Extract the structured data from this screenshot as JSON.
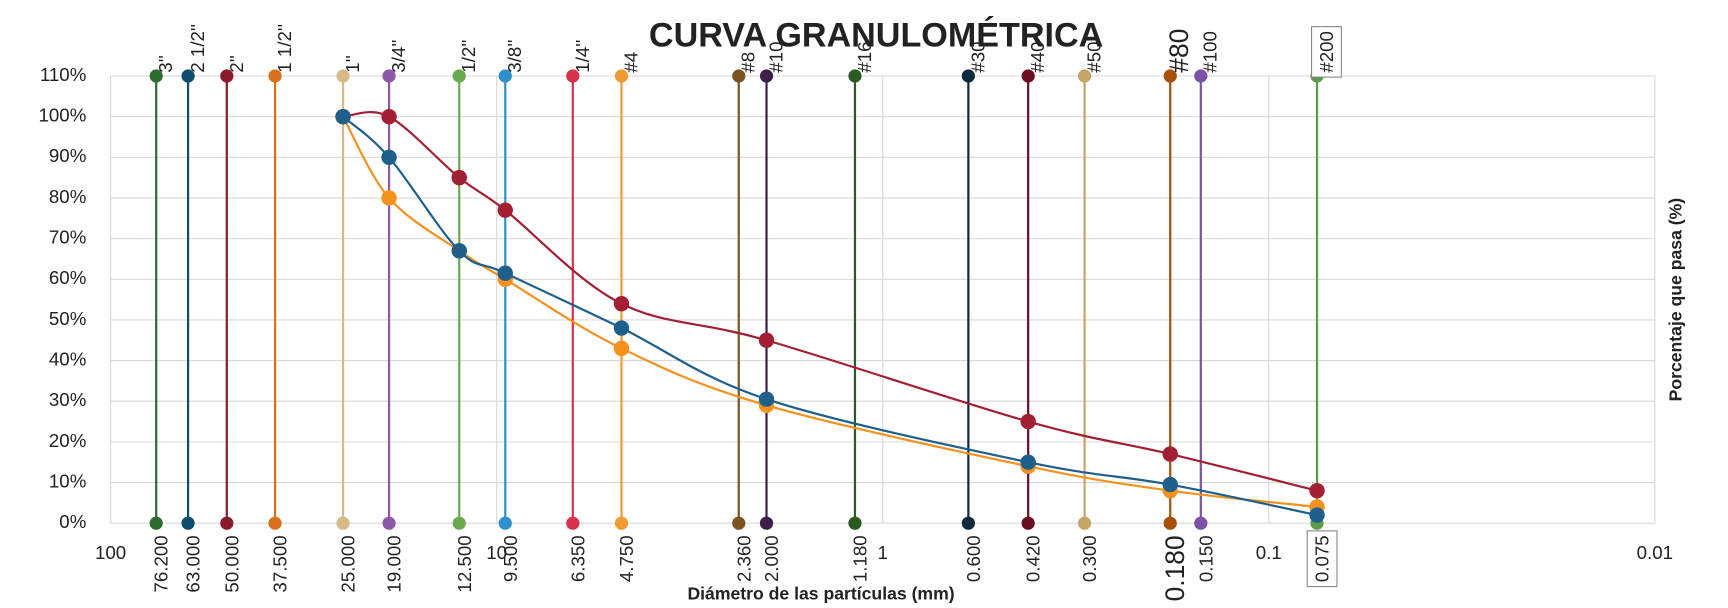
{
  "chart_data": {
    "type": "line",
    "title": "CURVA GRANULOMÉTRICA",
    "x_label": "Diámetro de las partículas (mm)",
    "y_label": "Porcentaje que pasa (%)",
    "xscale": "log",
    "xlim": [
      100,
      0.01
    ],
    "xticks": [
      100,
      10,
      1,
      0.1,
      0.01
    ],
    "ylim": [
      0,
      110
    ],
    "yticks": [
      {
        "value": 0,
        "label": "0%"
      },
      {
        "value": 10,
        "label": "10%"
      },
      {
        "value": 20,
        "label": "20%"
      },
      {
        "value": 30,
        "label": "30%"
      },
      {
        "value": 40,
        "label": "40%"
      },
      {
        "value": 50,
        "label": "50%"
      },
      {
        "value": 60,
        "label": "60%"
      },
      {
        "value": 70,
        "label": "70%"
      },
      {
        "value": 80,
        "label": "80%"
      },
      {
        "value": 90,
        "label": "90%"
      },
      {
        "value": 100,
        "label": "100%"
      },
      {
        "value": 110,
        "label": "110%"
      }
    ],
    "grid": true,
    "sieves": [
      {
        "name": "3''",
        "color": "#2e6b2e",
        "diameter": 76.2,
        "diameter_label": "76.200",
        "values": [
          0,
          110
        ]
      },
      {
        "name": "2 1/2''",
        "color": "#0e4d6e",
        "diameter": 63,
        "diameter_label": "63.000",
        "values": [
          0,
          110
        ]
      },
      {
        "name": "2''",
        "color": "#8b1a2b",
        "diameter": 50,
        "diameter_label": "50.000",
        "values": [
          0,
          110
        ]
      },
      {
        "name": "1 1/2''",
        "color": "#d9711c",
        "diameter": 37.5,
        "diameter_label": "37.500",
        "values": [
          0,
          110
        ]
      },
      {
        "name": "1''",
        "color": "#d8b98a",
        "diameter": 25,
        "diameter_label": "25.000",
        "values": [
          0,
          110
        ]
      },
      {
        "name": "3/4''",
        "color": "#8a5aa8",
        "diameter": 19,
        "diameter_label": "19.000",
        "values": [
          0,
          110
        ]
      },
      {
        "name": "1/2''",
        "color": "#6aaa4f",
        "diameter": 12.5,
        "diameter_label": "12.500",
        "values": [
          0,
          110
        ]
      },
      {
        "name": "3/8''",
        "color": "#2f8fcf",
        "diameter": 9.5,
        "diameter_label": "9.500",
        "values": [
          0,
          110
        ]
      },
      {
        "name": "1/4''",
        "color": "#d8324a",
        "diameter": 6.35,
        "diameter_label": "6.350",
        "values": [
          0,
          110
        ]
      },
      {
        "name": "#4",
        "color": "#f29a30",
        "diameter": 4.75,
        "diameter_label": "4.750",
        "values": [
          0,
          110
        ]
      },
      {
        "name": "#8",
        "color": "#7a5520",
        "diameter": 2.36,
        "diameter_label": "2.360",
        "values": [
          0,
          110
        ]
      },
      {
        "name": "#10",
        "color": "#3d1f4a",
        "diameter": 2,
        "diameter_label": "2.000",
        "values": [
          0,
          110
        ]
      },
      {
        "name": "#16",
        "color": "#2a5a22",
        "diameter": 1.18,
        "diameter_label": "1.180",
        "values": [
          0,
          110
        ]
      },
      {
        "name": "#30",
        "color": "#0d2a40",
        "diameter": 0.6,
        "diameter_label": "0.600",
        "values": [
          0,
          110
        ]
      },
      {
        "name": "#40",
        "color": "#6b0f20",
        "diameter": 0.42,
        "diameter_label": "0.420",
        "values": [
          0,
          110
        ]
      },
      {
        "name": "#50",
        "color": "#c8a566",
        "diameter": 0.3,
        "diameter_label": "0.300",
        "values": [
          0,
          110
        ]
      },
      {
        "name": "#80",
        "color": "#a6510a",
        "diameter": 0.18,
        "diameter_label": "0.180",
        "values": [
          0,
          110
        ]
      },
      {
        "name": "#100",
        "color": "#7b52a8",
        "diameter": 0.15,
        "diameter_label": "0.150",
        "values": [
          0,
          110
        ]
      },
      {
        "name": "#200",
        "color": "#5d9a4a",
        "diameter": 0.075,
        "diameter_label": "0.075",
        "values": [
          0,
          110
        ]
      }
    ],
    "x": [
      25,
      19,
      12.5,
      9.5,
      4.75,
      2,
      0.42,
      0.18,
      0.075
    ],
    "series": [
      {
        "color": "#a31f34",
        "values": [
          100,
          100,
          85,
          77,
          54,
          45,
          25,
          17,
          8
        ]
      },
      {
        "color": "#f5921e",
        "values": [
          100,
          80,
          67,
          60,
          43,
          29,
          14,
          8,
          4
        ]
      },
      {
        "color": "#1f5f8b",
        "values": [
          100,
          90,
          67,
          61.5,
          48,
          30.5,
          15,
          9.5,
          2
        ]
      }
    ]
  }
}
